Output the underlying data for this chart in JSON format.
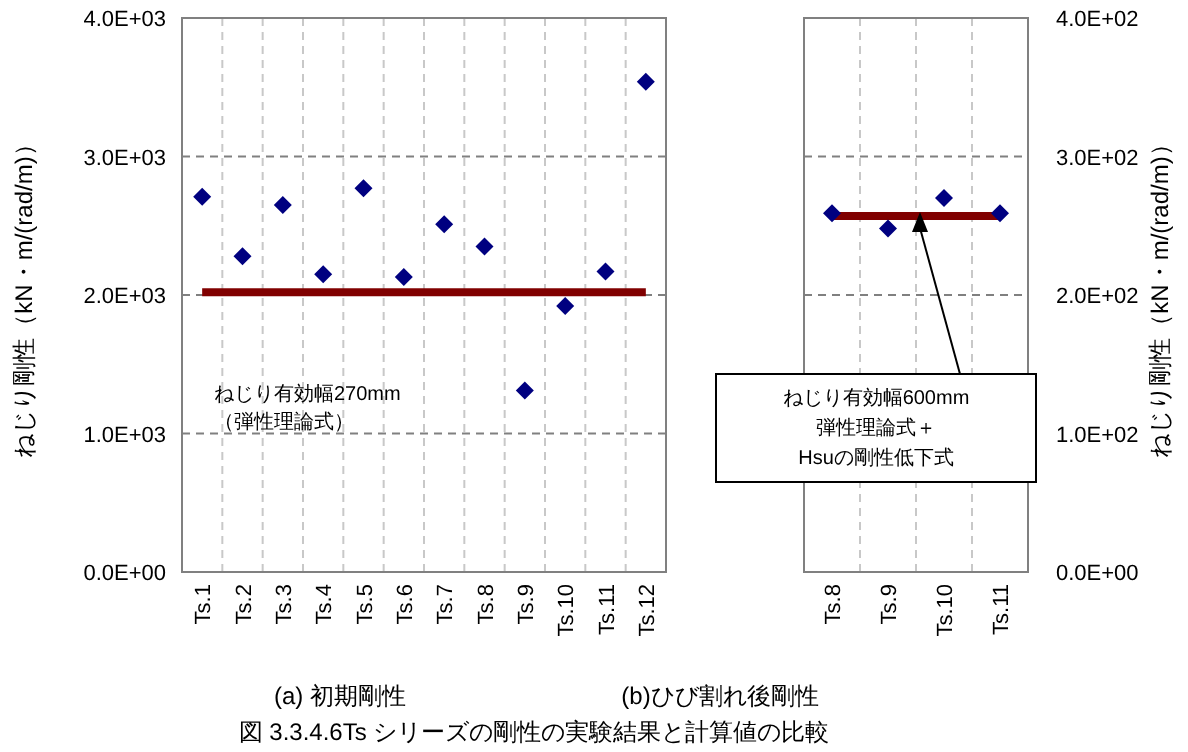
{
  "chart_data": [
    {
      "type": "scatter",
      "categories": [
        "Ts.1",
        "Ts.2",
        "Ts.3",
        "Ts.4",
        "Ts.5",
        "Ts.6",
        "Ts.7",
        "Ts.8",
        "Ts.9",
        "Ts.10",
        "Ts.11",
        "Ts.12"
      ],
      "series": [
        {
          "type": "scatter",
          "color": "#000080",
          "values": [
            2710,
            2280,
            2650,
            2150,
            2770,
            2130,
            2510,
            2350,
            1310,
            1920,
            2170,
            3540
          ]
        },
        {
          "type": "line",
          "color": "#800000",
          "marker": "none",
          "values": [
            2020,
            2020,
            2020,
            2020,
            2020,
            2020,
            2020,
            2020,
            2020,
            2020,
            2020,
            2020
          ]
        }
      ],
      "ylim": [
        0,
        4000
      ],
      "yticks": [
        {
          "value": 0,
          "label": "0.0E+00"
        },
        {
          "value": 1000,
          "label": "1.0E+03"
        },
        {
          "value": 2000,
          "label": "2.0E+03"
        },
        {
          "value": 3000,
          "label": "3.0E+03"
        },
        {
          "value": 4000,
          "label": "4.0E+03"
        }
      ],
      "ylabel": "ねじり剛性（kN・m/(rad/m)）",
      "xlabel": "(a)  初期剛性",
      "grid": true,
      "marker": "diamond",
      "annotations": [
        "ねじり有効幅270mm\n（弾性理論式）",
        "図 3.3.4.6Ts シリーズの剛性の実験結果と計算値の比較"
      ]
    },
    {
      "type": "scatter",
      "categories": [
        "Ts.8",
        "Ts.9",
        "Ts.10",
        "Ts.11"
      ],
      "series": [
        {
          "type": "scatter",
          "color": "#000080",
          "values": [
            259,
            248,
            270,
            259
          ]
        },
        {
          "type": "line",
          "color": "#800000",
          "marker": "none",
          "values": [
            257,
            257,
            257,
            257
          ]
        }
      ],
      "ylim": [
        0,
        400
      ],
      "yticks": [
        {
          "value": 0,
          "label": "0.0E+00"
        },
        {
          "value": 100,
          "label": "1.0E+02"
        },
        {
          "value": 200,
          "label": "2.0E+02"
        },
        {
          "value": 300,
          "label": "3.0E+02"
        },
        {
          "value": 400,
          "label": "4.0E+02"
        }
      ],
      "ylabel": "ねじり剛性（kN・m/(rad/m)）",
      "xlabel": "(b)ひび割れ後剛性",
      "grid": true,
      "marker": "diamond",
      "annotations": [
        "ねじり有効幅600mm\n弾性理論式＋\nHsuの剛性低下式"
      ]
    }
  ]
}
